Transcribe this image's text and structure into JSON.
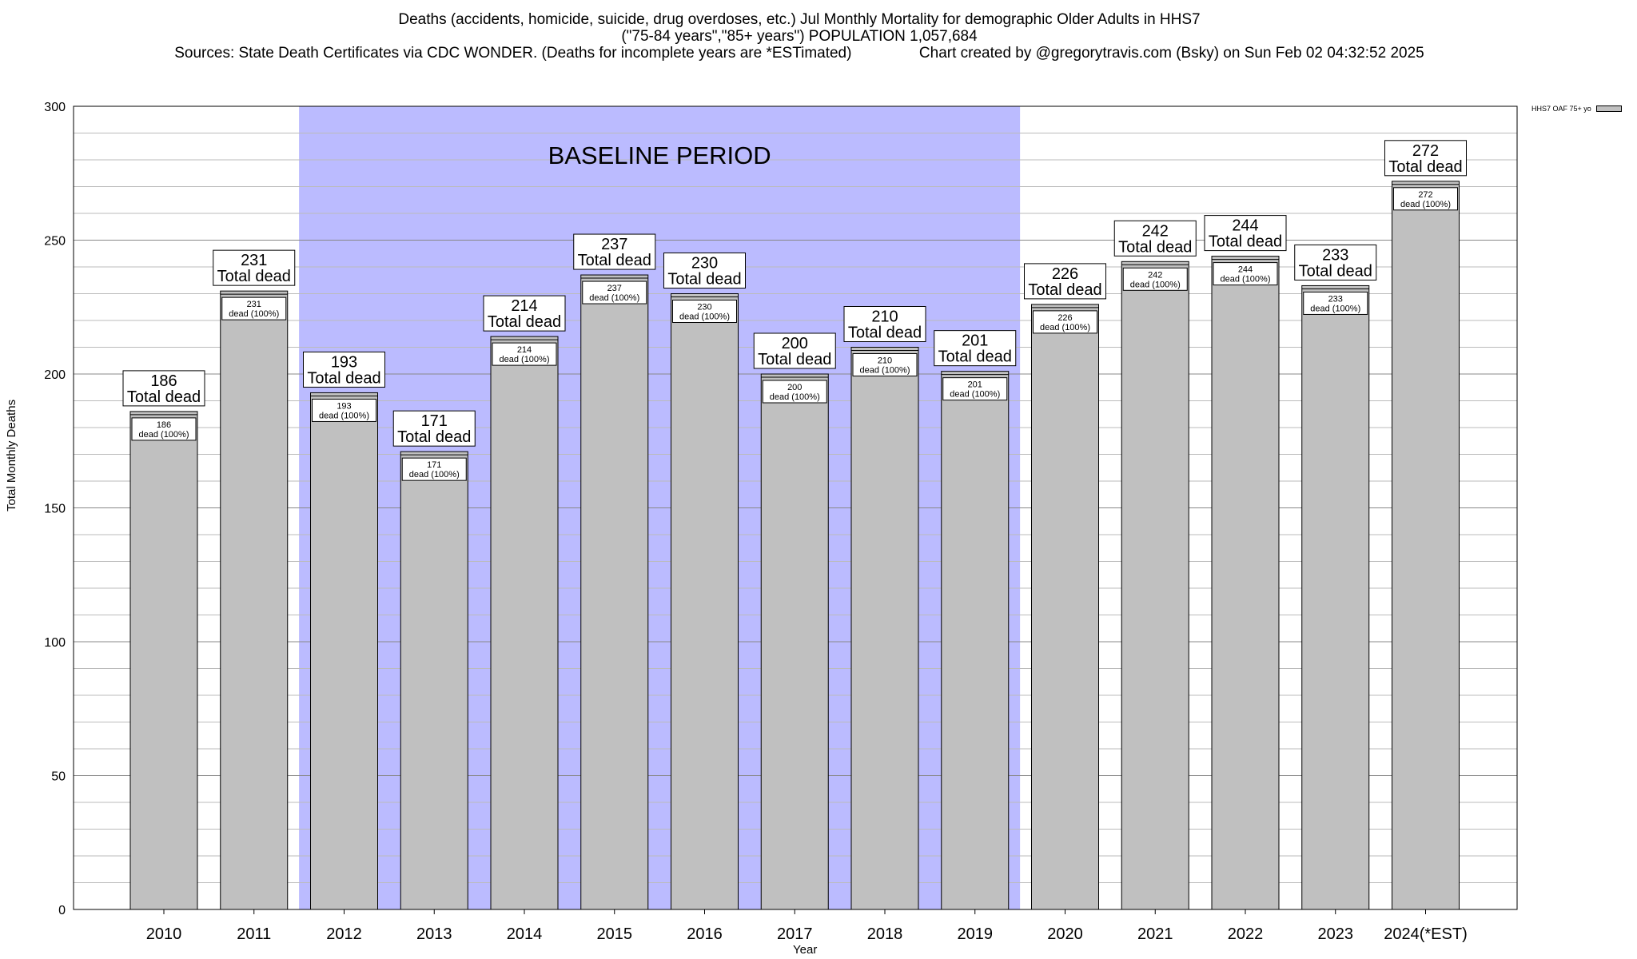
{
  "title": {
    "line1": "Deaths (accidents, homicide, suicide, drug overdoses, etc.) Jul Monthly Mortality for demographic Older Adults in HHS7",
    "line2": "(\"75-84 years\",\"85+ years\") POPULATION 1,057,684",
    "line3": "Sources: State Death Certificates via CDC WONDER. (Deaths for incomplete years are *ESTimated)                Chart created by @gregorytravis.com (Bsky) on Sun Feb 02 04:32:52 2025"
  },
  "chart_data": {
    "type": "bar",
    "categories": [
      "2010",
      "2011",
      "2012",
      "2013",
      "2014",
      "2015",
      "2016",
      "2017",
      "2018",
      "2019",
      "2020",
      "2021",
      "2022",
      "2023",
      "2024(*EST)"
    ],
    "series": [
      {
        "name": "HHS7 OAF 75+ yo",
        "values": [
          186,
          231,
          193,
          171,
          214,
          237,
          230,
          200,
          210,
          201,
          226,
          242,
          244,
          233,
          272
        ]
      }
    ],
    "xlabel": "Year",
    "ylabel": "Total Monthly Deaths",
    "ylim": [
      0,
      300
    ],
    "yticks": [
      0,
      50,
      100,
      150,
      200,
      250,
      300
    ],
    "grid": true,
    "legend_position": "top-right",
    "total_label_suffix": "Total dead",
    "inner_label_suffix": "dead (100%)",
    "baseline": {
      "label": "BASELINE PERIOD",
      "from": "2012",
      "to": "2019"
    },
    "colors": {
      "bar": "#c0c0c0",
      "baseline": "#bbbbff",
      "grid": "#bbbbbb"
    }
  }
}
